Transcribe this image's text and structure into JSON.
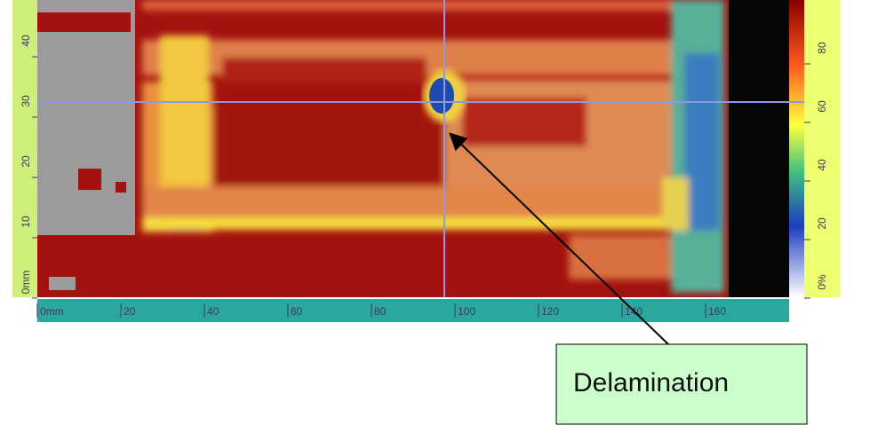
{
  "x_axis": {
    "ticks": [
      "0mm",
      "20",
      "40",
      "60",
      "80",
      "100",
      "120",
      "140",
      "160"
    ]
  },
  "y_axis": {
    "ticks": [
      "0mm",
      "10",
      "20",
      "30",
      "40"
    ]
  },
  "colorbar": {
    "ticks": [
      "0%",
      "20",
      "40",
      "60",
      "80"
    ]
  },
  "annotation": {
    "text": "Delamination"
  }
}
